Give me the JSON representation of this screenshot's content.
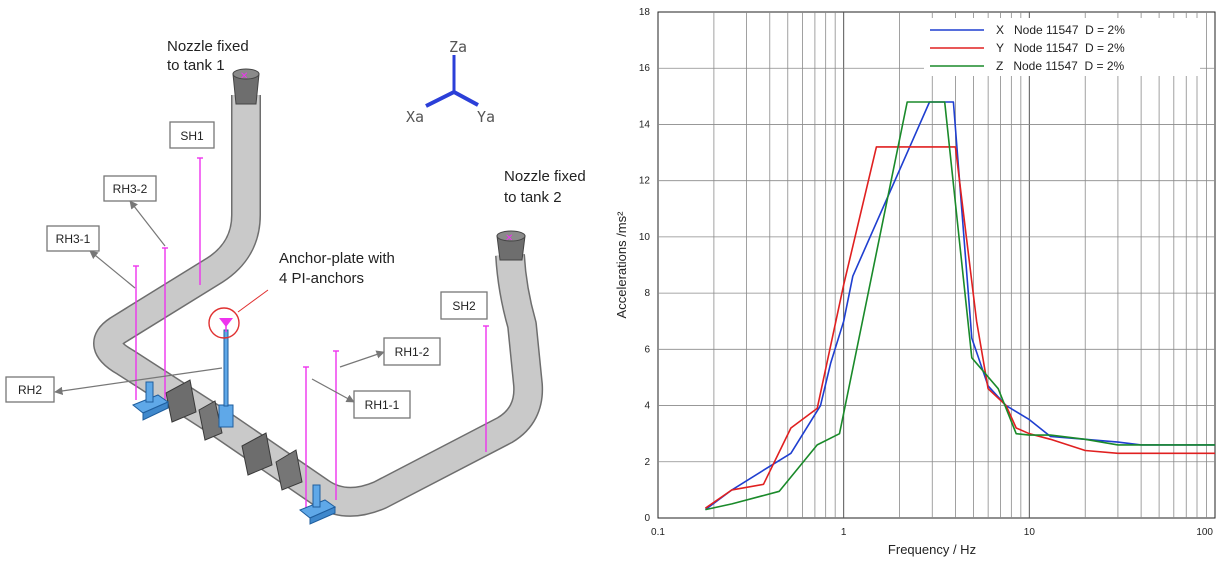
{
  "diagram": {
    "nozzle1": [
      "Nozzle fixed",
      "to tank 1"
    ],
    "nozzle2": [
      "Nozzle fixed",
      "to tank 2"
    ],
    "anchor": [
      "Anchor-plate with",
      "4 PI-anchors"
    ],
    "axes": {
      "z": "Za",
      "x": "Xa",
      "y": "Ya"
    },
    "boxes": {
      "sh1": "SH1",
      "sh2": "SH2",
      "rh3_2": "RH3-2",
      "rh3_1": "RH3-1",
      "rh2": "RH2",
      "rh1_2": "RH1-2",
      "rh1_1": "RH1-1"
    },
    "colors": {
      "pipe": "#c8c8c8",
      "hanger": "#ee33ee",
      "support": "#5fa8e8",
      "nozzle": "#7a7a7a",
      "callout": "#e03030"
    }
  },
  "chart_data": {
    "type": "line",
    "xlabel": "Frequency  / Hz",
    "ylabel": "Accelerations  /ms²",
    "xscale": "log",
    "xlim": [
      0.1,
      100
    ],
    "ylim": [
      0,
      18
    ],
    "xticks": [
      "0.1",
      "1",
      "10",
      "100"
    ],
    "yticks": [
      "0",
      "2",
      "4",
      "6",
      "8",
      "10",
      "12",
      "14",
      "16",
      "18"
    ],
    "grid": true,
    "legend_position": "top-right",
    "series": [
      {
        "name": "X   Node 11547  D = 2%",
        "color": "#1f3fd0",
        "x": [
          0.18,
          0.25,
          0.37,
          0.52,
          0.75,
          0.85,
          1.0,
          1.12,
          2.9,
          3.9,
          4.9,
          6.0,
          7.5,
          10,
          13,
          20,
          30,
          40,
          100
        ],
        "y": [
          0.3,
          1.0,
          1.7,
          2.3,
          4.0,
          5.5,
          7.0,
          8.6,
          14.8,
          14.8,
          6.4,
          4.7,
          4.0,
          3.5,
          2.9,
          2.8,
          2.7,
          2.6,
          2.6
        ]
      },
      {
        "name": "Y   Node 11547  D = 2%",
        "color": "#e02020",
        "x": [
          0.18,
          0.25,
          0.37,
          0.52,
          0.72,
          1.0,
          1.5,
          4.0,
          5.2,
          6.0,
          7.5,
          8.5,
          10,
          13,
          20,
          30,
          40,
          100
        ],
        "y": [
          0.35,
          1.0,
          1.2,
          3.2,
          3.9,
          8.3,
          13.2,
          13.2,
          7.0,
          4.6,
          4.0,
          3.2,
          3.0,
          2.8,
          2.4,
          2.3,
          2.3,
          2.3
        ]
      },
      {
        "name": "Z   Node 11547  D = 2%",
        "color": "#1a8a2a",
        "x": [
          0.18,
          0.25,
          0.45,
          0.72,
          0.95,
          2.2,
          3.5,
          4.9,
          6.8,
          8.5,
          10,
          13,
          20,
          30,
          40,
          100
        ],
        "y": [
          0.3,
          0.5,
          0.95,
          2.6,
          3.0,
          14.8,
          14.8,
          5.7,
          4.6,
          3.0,
          2.95,
          2.95,
          2.8,
          2.6,
          2.6,
          2.6
        ]
      }
    ]
  }
}
